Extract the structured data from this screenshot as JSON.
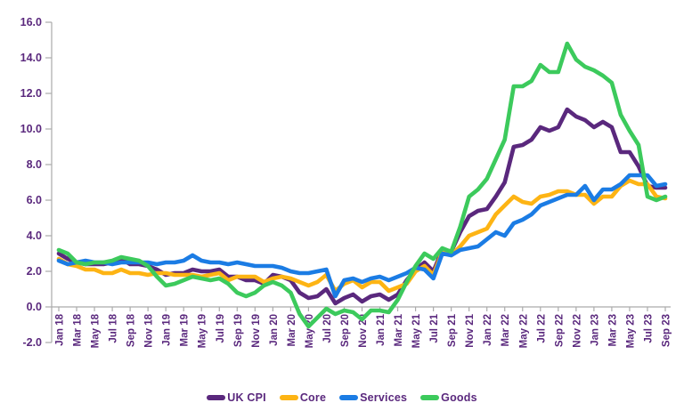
{
  "chart_data": {
    "type": "line",
    "title": "",
    "xlabel": "",
    "ylabel": "",
    "x_unit": "month",
    "x_start": "Jan 18",
    "x_end": "Sep 23",
    "n_points": 69,
    "x_tick_labels": [
      "Jan 18",
      "Mar 18",
      "May 18",
      "Jul 18",
      "Sep 18",
      "Nov 18",
      "Jan 19",
      "Mar 19",
      "May 19",
      "Jul 19",
      "Sep 19",
      "Nov 19",
      "Jan 20",
      "Mar 20",
      "May 20",
      "Jul 20",
      "Sep 20",
      "Nov 20",
      "Jan 21",
      "Mar 21",
      "May 21",
      "Jul 21",
      "Sep 21",
      "Nov 21",
      "Jan 22",
      "Mar 22",
      "May 22",
      "Jul 22",
      "Sep 22",
      "Nov 22",
      "Jan 23",
      "Mar 23",
      "May 23",
      "Jul 23",
      "Sep 23"
    ],
    "ylim": [
      -2,
      16
    ],
    "y_tick_step": 2,
    "y_tick_labels": [
      "16.0",
      "14.0",
      "12.0",
      "10.0",
      "8.0",
      "6.0",
      "4.0",
      "2.0",
      "0.0",
      "-2.0"
    ],
    "grid": false,
    "legend_position": "bottom",
    "axis_color": "#ABABAB",
    "label_color": "#5A287D",
    "series": [
      {
        "name": "UK CPI",
        "color": "#5A287D",
        "values": [
          3.0,
          2.7,
          2.5,
          2.4,
          2.4,
          2.4,
          2.5,
          2.7,
          2.4,
          2.4,
          2.3,
          2.1,
          1.8,
          1.9,
          1.9,
          2.1,
          2.0,
          2.0,
          2.1,
          1.7,
          1.7,
          1.5,
          1.5,
          1.3,
          1.8,
          1.7,
          1.5,
          0.8,
          0.5,
          0.6,
          1.0,
          0.2,
          0.5,
          0.7,
          0.3,
          0.6,
          0.7,
          0.4,
          0.7,
          1.5,
          2.1,
          2.5,
          2.0,
          3.2,
          3.1,
          4.2,
          5.1,
          5.4,
          5.5,
          6.2,
          7.0,
          9.0,
          9.1,
          9.4,
          10.1,
          9.9,
          10.1,
          11.1,
          10.7,
          10.5,
          10.1,
          10.4,
          10.1,
          8.7,
          8.7,
          7.9,
          6.8,
          6.7,
          6.7
        ]
      },
      {
        "name": "Core",
        "color": "#FDB414",
        "values": [
          2.7,
          2.4,
          2.3,
          2.1,
          2.1,
          1.9,
          1.9,
          2.1,
          1.9,
          1.9,
          1.8,
          1.9,
          1.9,
          1.8,
          1.8,
          1.8,
          1.7,
          1.8,
          1.9,
          1.5,
          1.7,
          1.7,
          1.7,
          1.4,
          1.6,
          1.7,
          1.6,
          1.4,
          1.2,
          1.4,
          1.8,
          0.9,
          1.3,
          1.5,
          1.1,
          1.4,
          1.4,
          0.9,
          1.1,
          1.3,
          2.0,
          2.3,
          1.8,
          3.1,
          2.9,
          3.4,
          4.0,
          4.2,
          4.4,
          5.2,
          5.7,
          6.2,
          5.9,
          5.8,
          6.2,
          6.3,
          6.5,
          6.5,
          6.3,
          6.3,
          5.8,
          6.2,
          6.2,
          6.8,
          7.1,
          6.9,
          6.9,
          6.2,
          6.1
        ]
      },
      {
        "name": "Services",
        "color": "#1B7CE4",
        "values": [
          2.6,
          2.4,
          2.5,
          2.6,
          2.5,
          2.5,
          2.4,
          2.5,
          2.5,
          2.5,
          2.5,
          2.4,
          2.5,
          2.5,
          2.6,
          2.9,
          2.6,
          2.5,
          2.5,
          2.4,
          2.5,
          2.4,
          2.3,
          2.3,
          2.3,
          2.2,
          2.0,
          1.9,
          1.9,
          2.0,
          2.1,
          0.6,
          1.5,
          1.6,
          1.4,
          1.6,
          1.7,
          1.5,
          1.7,
          1.9,
          2.2,
          2.1,
          1.6,
          3.0,
          2.9,
          3.2,
          3.3,
          3.4,
          3.8,
          4.2,
          4.0,
          4.7,
          4.9,
          5.2,
          5.7,
          5.9,
          6.1,
          6.3,
          6.3,
          6.8,
          6.0,
          6.6,
          6.6,
          6.9,
          7.4,
          7.4,
          7.4,
          6.8,
          6.9
        ]
      },
      {
        "name": "Goods",
        "color": "#3CCA5C",
        "values": [
          3.2,
          3.0,
          2.5,
          2.4,
          2.5,
          2.5,
          2.6,
          2.8,
          2.7,
          2.6,
          2.3,
          1.7,
          1.2,
          1.3,
          1.5,
          1.7,
          1.6,
          1.5,
          1.6,
          1.3,
          0.8,
          0.6,
          0.8,
          1.2,
          1.4,
          1.2,
          0.8,
          -0.4,
          -1.1,
          -0.6,
          -0.1,
          -0.4,
          -0.2,
          -0.3,
          -0.7,
          -0.2,
          -0.2,
          -0.3,
          0.4,
          1.4,
          2.3,
          3.0,
          2.7,
          3.3,
          3.1,
          4.5,
          6.2,
          6.6,
          7.2,
          8.3,
          9.4,
          12.4,
          12.4,
          12.7,
          13.6,
          13.2,
          13.2,
          14.8,
          13.9,
          13.5,
          13.3,
          13.0,
          12.6,
          10.8,
          9.9,
          9.1,
          6.2,
          6.0,
          6.2
        ]
      }
    ]
  }
}
